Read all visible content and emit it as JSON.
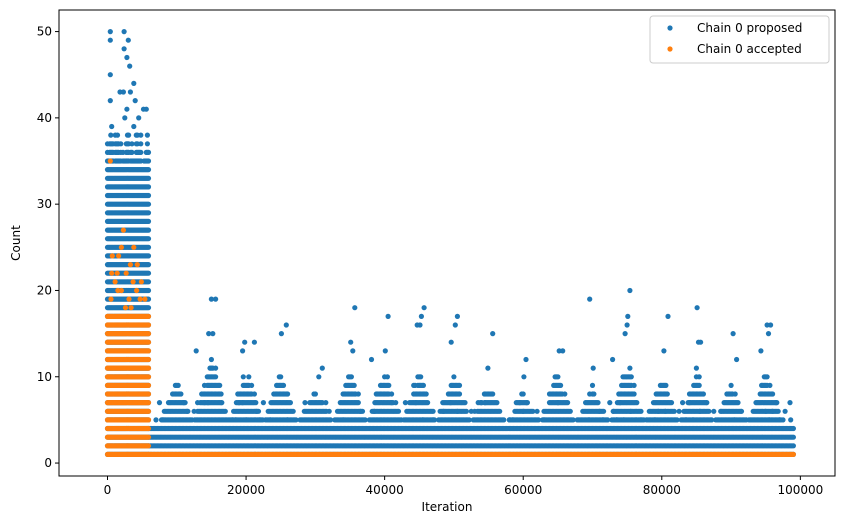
{
  "chart_data": {
    "type": "scatter",
    "title": "",
    "xlabel": "Iteration",
    "ylabel": "Count",
    "xlim": [
      -7000,
      105000
    ],
    "ylim": [
      -1.5,
      52.5
    ],
    "xticks": [
      0,
      20000,
      40000,
      60000,
      80000,
      100000
    ],
    "xtick_labels": [
      "0",
      "20000",
      "40000",
      "60000",
      "80000",
      "100000"
    ],
    "yticks": [
      0,
      10,
      20,
      30,
      40,
      50
    ],
    "ytick_labels": [
      "0",
      "10",
      "20",
      "30",
      "40",
      "50"
    ],
    "grid": false,
    "legend_position": "top-right",
    "series": [
      {
        "name": "Chain 0 proposed",
        "color": "#1f77b4",
        "values_description_free": true,
        "bands": [
          {
            "x_start": 0,
            "x_end": 6000,
            "y_min": 1,
            "y_max": 38
          },
          {
            "x_start": 6000,
            "x_end": 99000,
            "y_min": 1,
            "y_max": 4
          }
        ],
        "scattered_points": [
          [
            400,
            50
          ],
          [
            400,
            49
          ],
          [
            2400,
            50
          ],
          [
            3000,
            49
          ],
          [
            400,
            45
          ],
          [
            2400,
            48
          ],
          [
            2800,
            47
          ],
          [
            3200,
            46
          ],
          [
            3800,
            44
          ],
          [
            400,
            42
          ],
          [
            1800,
            43
          ],
          [
            2300,
            43
          ],
          [
            3300,
            43
          ],
          [
            4000,
            42
          ],
          [
            2800,
            41
          ],
          [
            5200,
            41
          ],
          [
            5600,
            41
          ],
          [
            2500,
            40
          ],
          [
            4500,
            40
          ],
          [
            3800,
            39
          ],
          [
            600,
            39
          ],
          [
            15000,
            19
          ],
          [
            15600,
            19
          ],
          [
            14600,
            15
          ],
          [
            15200,
            15
          ],
          [
            12800,
            13
          ],
          [
            19800,
            14
          ],
          [
            21200,
            14
          ],
          [
            19500,
            13
          ],
          [
            25100,
            15
          ],
          [
            25800,
            16
          ],
          [
            30500,
            10
          ],
          [
            31000,
            11
          ],
          [
            35700,
            18
          ],
          [
            35100,
            14
          ],
          [
            35400,
            13
          ],
          [
            38100,
            12
          ],
          [
            40500,
            17
          ],
          [
            40100,
            13
          ],
          [
            45100,
            16
          ],
          [
            45700,
            18
          ],
          [
            45300,
            17
          ],
          [
            44700,
            16
          ],
          [
            50500,
            17
          ],
          [
            50200,
            16
          ],
          [
            49600,
            14
          ],
          [
            55600,
            15
          ],
          [
            54900,
            11
          ],
          [
            60400,
            12
          ],
          [
            60100,
            10
          ],
          [
            65200,
            13
          ],
          [
            65700,
            13
          ],
          [
            69600,
            19
          ],
          [
            70100,
            11
          ],
          [
            72900,
            12
          ],
          [
            74700,
            15
          ],
          [
            75100,
            17
          ],
          [
            75400,
            20
          ],
          [
            75000,
            16
          ],
          [
            80300,
            13
          ],
          [
            80900,
            17
          ],
          [
            85100,
            18
          ],
          [
            85600,
            14
          ],
          [
            85300,
            14
          ],
          [
            90300,
            15
          ],
          [
            90800,
            12
          ],
          [
            94300,
            13
          ],
          [
            95200,
            16
          ],
          [
            95700,
            16
          ],
          [
            95400,
            15
          ],
          [
            97800,
            6
          ],
          [
            98600,
            5
          ]
        ],
        "burst_centers": [
          10000,
          15000,
          20000,
          25000,
          30000,
          35000,
          40000,
          45000,
          50000,
          55000,
          60000,
          65000,
          70000,
          75000,
          80000,
          85000,
          90000,
          95000
        ],
        "burst_heights": [
          10,
          13,
          11,
          11,
          9,
          11,
          11,
          11,
          11,
          9,
          8,
          11,
          9,
          12,
          10,
          11,
          9,
          11
        ]
      },
      {
        "name": "Chain 0 accepted",
        "color": "#ff7f0e",
        "bands": [
          {
            "x_start": 0,
            "x_end": 6000,
            "y_min": 1,
            "y_max": 17
          },
          {
            "x_start": 6000,
            "x_end": 99000,
            "y_min": 1,
            "y_max": 1
          }
        ],
        "scattered_points": [
          [
            400,
            35
          ],
          [
            2300,
            27
          ],
          [
            3800,
            25
          ],
          [
            2000,
            25
          ],
          [
            1600,
            24
          ],
          [
            700,
            24
          ],
          [
            3300,
            23
          ],
          [
            4300,
            23
          ],
          [
            1400,
            22
          ],
          [
            2700,
            22
          ],
          [
            600,
            22
          ],
          [
            3700,
            21
          ],
          [
            4900,
            21
          ],
          [
            1100,
            21
          ],
          [
            2000,
            20
          ],
          [
            4200,
            20
          ],
          [
            1500,
            20
          ],
          [
            3100,
            19
          ],
          [
            500,
            19
          ],
          [
            4700,
            19
          ],
          [
            5400,
            19
          ],
          [
            2600,
            18
          ],
          [
            3400,
            18
          ]
        ]
      }
    ]
  }
}
